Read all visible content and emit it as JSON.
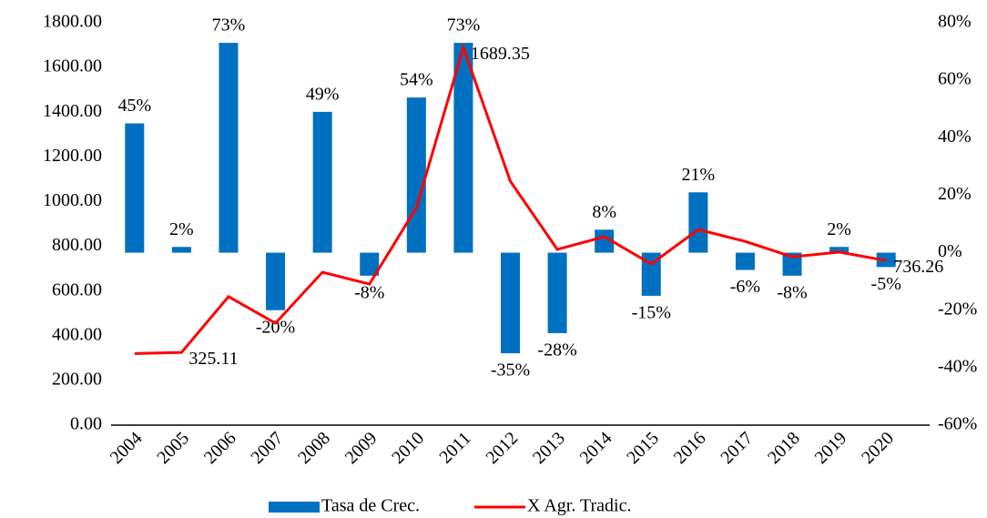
{
  "chart_data": {
    "type": "combo",
    "categories": [
      "2004",
      "2005",
      "2006",
      "2007",
      "2008",
      "2009",
      "2010",
      "2011",
      "2012",
      "2013",
      "2014",
      "2015",
      "2016",
      "2017",
      "2018",
      "2019",
      "2020"
    ],
    "series": [
      {
        "name": "Tasa de Crec.",
        "type": "bar",
        "axis": "y2",
        "color": "#0070c0",
        "values": [
          45,
          2,
          73,
          -20,
          49,
          -8,
          54,
          73,
          -35,
          -28,
          8,
          -15,
          21,
          -6,
          -8,
          2,
          -5
        ],
        "value_labels": [
          "45%",
          "2%",
          "73%",
          "-20%",
          "49%",
          "-8%",
          "54%",
          "73%",
          "-35%",
          "-28%",
          "8%",
          "-15%",
          "21%",
          "-6%",
          "-8%",
          "2%",
          "-5%"
        ]
      },
      {
        "name": "X Agr. Tradic.",
        "type": "line",
        "color": "#ff0000",
        "values": [
          320,
          325.11,
          575,
          456,
          684,
          631,
          973,
          1689.35,
          1091,
          786,
          843,
          721,
          875,
          822,
          753,
          774,
          736.26
        ],
        "value_labels": [
          null,
          "325.11",
          null,
          null,
          null,
          null,
          null,
          "1689.35",
          null,
          null,
          null,
          null,
          null,
          null,
          null,
          null,
          "736.26"
        ]
      }
    ],
    "ylim": [
      0,
      1800
    ],
    "yticks": [
      {
        "value": 0,
        "label": "0.00"
      },
      {
        "value": 200,
        "label": "200.00"
      },
      {
        "value": 400,
        "label": "400.00"
      },
      {
        "value": 600,
        "label": "600.00"
      },
      {
        "value": 800,
        "label": "800.00"
      },
      {
        "value": 1000,
        "label": "1000.00"
      },
      {
        "value": 1200,
        "label": "1200.00"
      },
      {
        "value": 1400,
        "label": "1400.00"
      },
      {
        "value": 1600,
        "label": "1600.00"
      },
      {
        "value": 1800,
        "label": "1800.00"
      }
    ],
    "y2lim": [
      -60,
      80
    ],
    "y2ticks": [
      {
        "value": -60,
        "label": "-60%"
      },
      {
        "value": -40,
        "label": "-40%"
      },
      {
        "value": -20,
        "label": "-20%"
      },
      {
        "value": 0,
        "label": "0%"
      },
      {
        "value": 20,
        "label": "20%"
      },
      {
        "value": 40,
        "label": "40%"
      },
      {
        "value": 60,
        "label": "60%"
      },
      {
        "value": 80,
        "label": "80%"
      }
    ],
    "legend": "bottom"
  }
}
